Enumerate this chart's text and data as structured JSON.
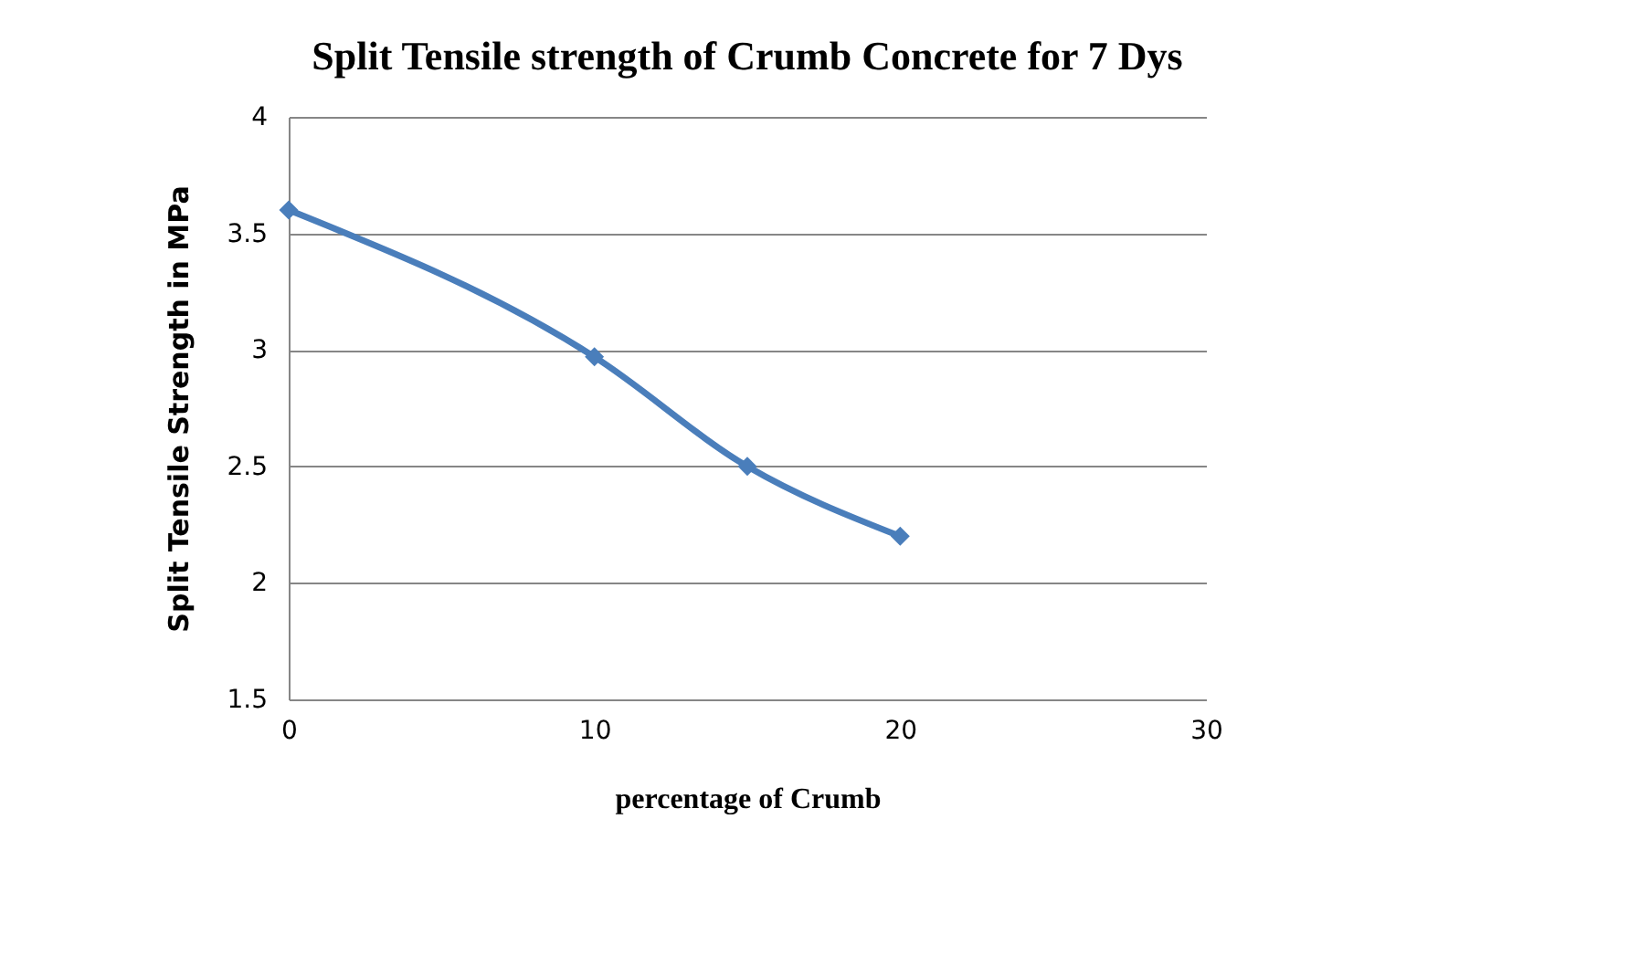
{
  "chart_data": {
    "type": "line",
    "title": "Split Tensile strength of Crumb Concrete for 7 Dys",
    "xlabel": "percentage of Crumb",
    "ylabel": "Split  Tensile Strength in MPa",
    "x": [
      0,
      10,
      15,
      20
    ],
    "series": [
      {
        "color": "#4a7ebb",
        "values": [
          3.6,
          2.97,
          2.5,
          2.2
        ]
      }
    ],
    "xlim": [
      0,
      30
    ],
    "xticks": [
      0,
      10,
      20,
      30
    ],
    "ylim": [
      1.5,
      4
    ],
    "yticks": [
      1.5,
      2,
      2.5,
      3,
      3.5,
      4
    ],
    "grid": "y",
    "marker": "diamond",
    "line_style": "solid"
  }
}
